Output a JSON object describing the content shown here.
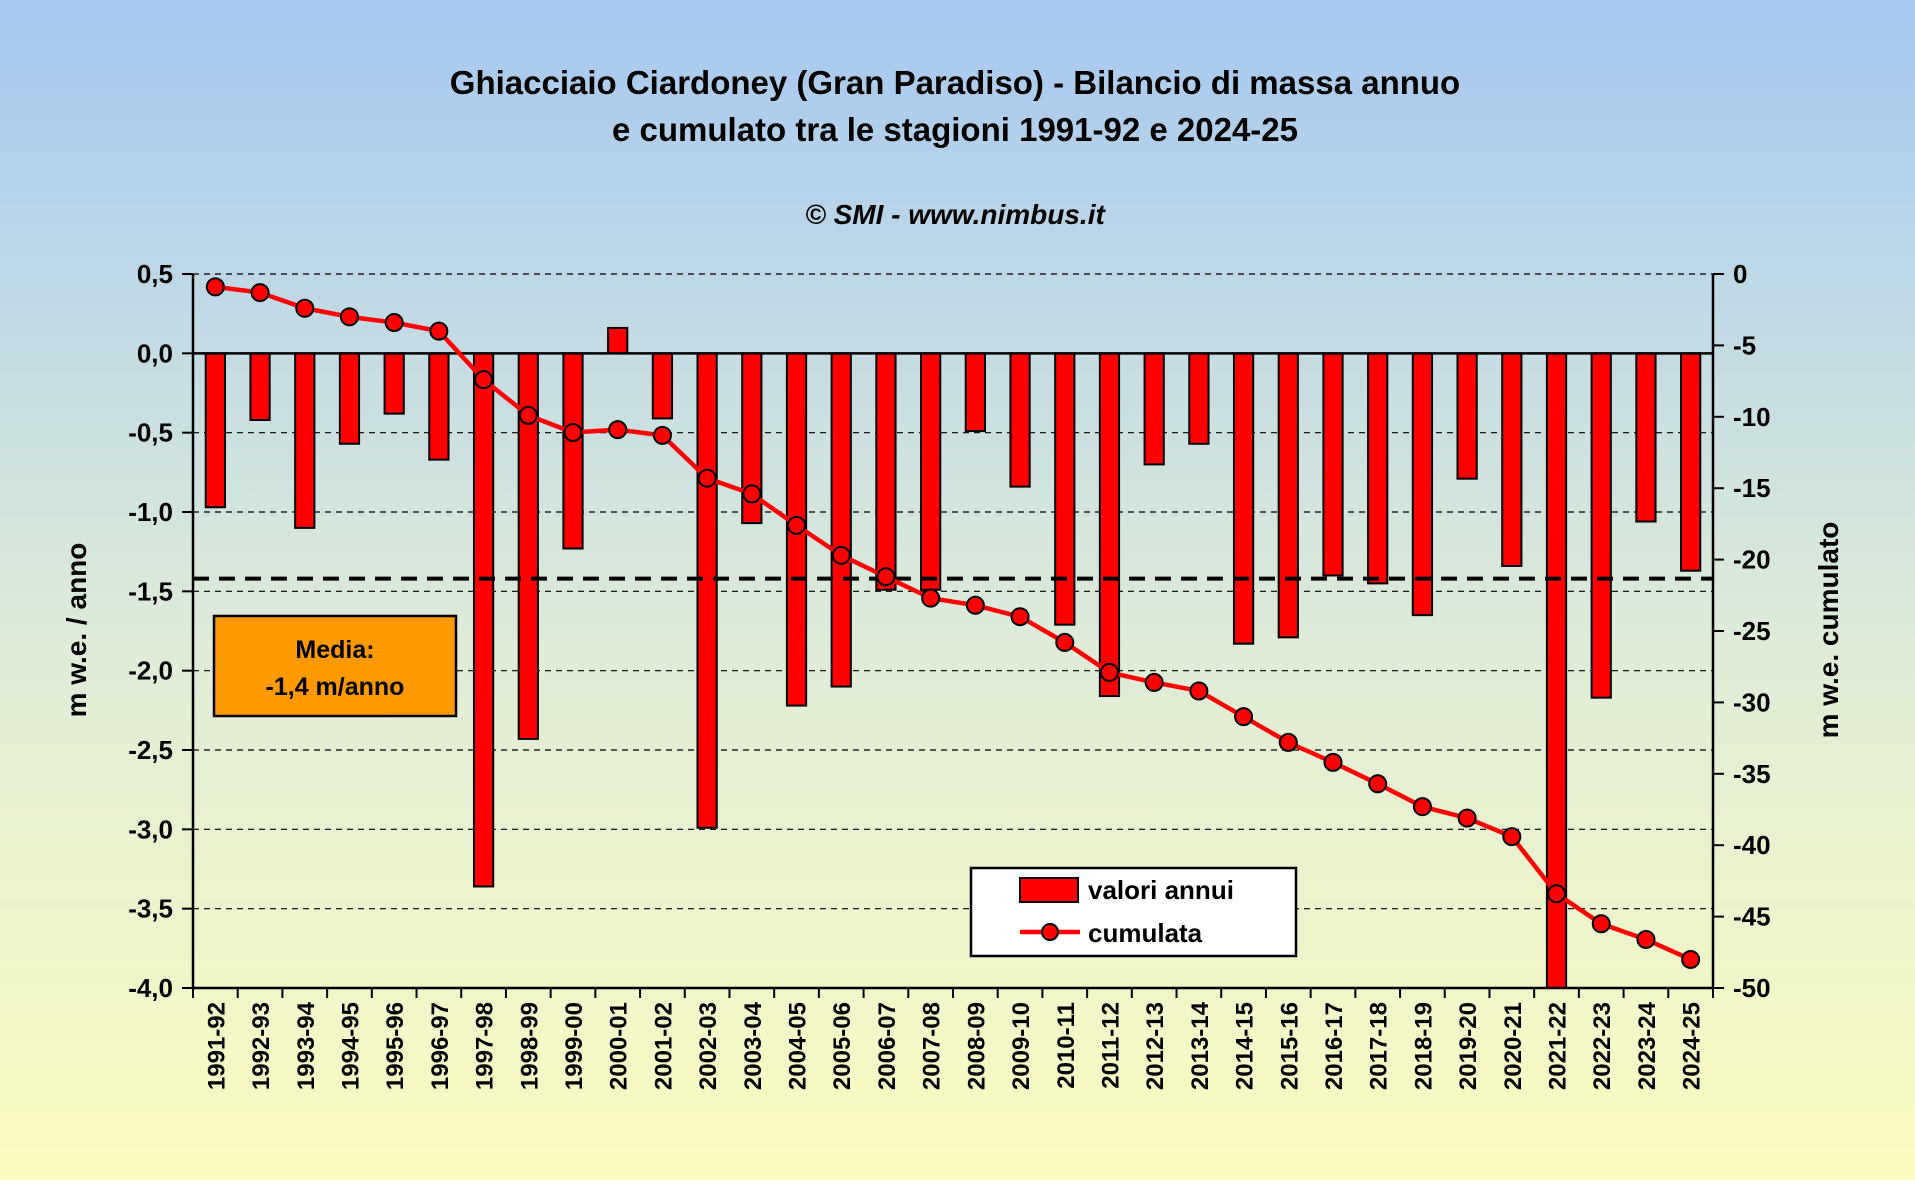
{
  "chart_data": {
    "type": "bar",
    "title_line1": "Ghiacciaio Ciardoney (Gran Paradiso) - Bilancio di massa annuo",
    "title_line2": "e cumulato tra le stagioni 1991-92 e 2024-25",
    "subtitle": "© SMI - www.nimbus.it",
    "ylabel_left": "m w.e. / anno",
    "ylabel_right": "m w.e. cumulato",
    "ylim_left": [
      -4.0,
      0.5
    ],
    "ylim_right": [
      -50,
      0
    ],
    "yticks_left": [
      "0,5",
      "0,0",
      "-0,5",
      "-1,0",
      "-1,5",
      "-2,0",
      "-2,5",
      "-3,0",
      "-3,5",
      "-4,0"
    ],
    "yticks_right": [
      "0",
      "-5",
      "-10",
      "-15",
      "-20",
      "-25",
      "-30",
      "-35",
      "-40",
      "-45",
      "-50"
    ],
    "grid": true,
    "colors": {
      "bar": "#ff0000",
      "line": "#ff0000",
      "marker": "#ff0000",
      "mean_line": "#000000",
      "annotation_box": "#ff9900",
      "bg_top": "#a6c8f0",
      "bg_bottom": "#fbfbc0"
    },
    "categories": [
      "1991-92",
      "1992-93",
      "1993-94",
      "1994-95",
      "1995-96",
      "1996-97",
      "1997-98",
      "1998-99",
      "1999-00",
      "2000-01",
      "2001-02",
      "2002-03",
      "2003-04",
      "2004-05",
      "2005-06",
      "2006-07",
      "2007-08",
      "2008-09",
      "2009-10",
      "2010-11",
      "2011-12",
      "2012-13",
      "2013-14",
      "2014-15",
      "2015-16",
      "2016-17",
      "2017-18",
      "2018-19",
      "2019-20",
      "2020-21",
      "2021-22",
      "2022-23",
      "2023-24",
      "2024-25"
    ],
    "series": [
      {
        "name": "valori annui",
        "axis": "left",
        "kind": "bar",
        "values": [
          -0.97,
          -0.42,
          -1.1,
          -0.57,
          -0.38,
          -0.67,
          -3.36,
          -2.43,
          -1.23,
          0.16,
          -0.41,
          -2.99,
          -1.07,
          -2.22,
          -2.1,
          -1.49,
          -1.49,
          -0.49,
          -0.84,
          -1.71,
          -2.16,
          -0.7,
          -0.57,
          -1.83,
          -1.79,
          -1.4,
          -1.45,
          -1.65,
          -0.79,
          -1.34,
          -4.0,
          -2.17,
          -1.06,
          -1.37
        ]
      },
      {
        "name": "cumulata",
        "axis": "right",
        "kind": "line",
        "values": [
          -0.9,
          -1.3,
          -2.4,
          -3.0,
          -3.4,
          -4.0,
          -7.4,
          -9.9,
          -11.1,
          -10.9,
          -11.3,
          -14.3,
          -15.4,
          -17.6,
          -19.7,
          -21.2,
          -22.7,
          -23.2,
          -24.0,
          -25.8,
          -27.9,
          -28.6,
          -29.2,
          -31.0,
          -32.8,
          -34.2,
          -35.7,
          -37.3,
          -38.1,
          -39.4,
          -43.4,
          -45.5,
          -46.6,
          -48.0
        ]
      }
    ],
    "mean_value": -1.42,
    "annotation": {
      "line1": "Media:",
      "line2": "-1,4 m/anno"
    },
    "legend": {
      "position": "bottom-center",
      "bar_label": "valori annui",
      "line_label": "cumulata"
    }
  }
}
